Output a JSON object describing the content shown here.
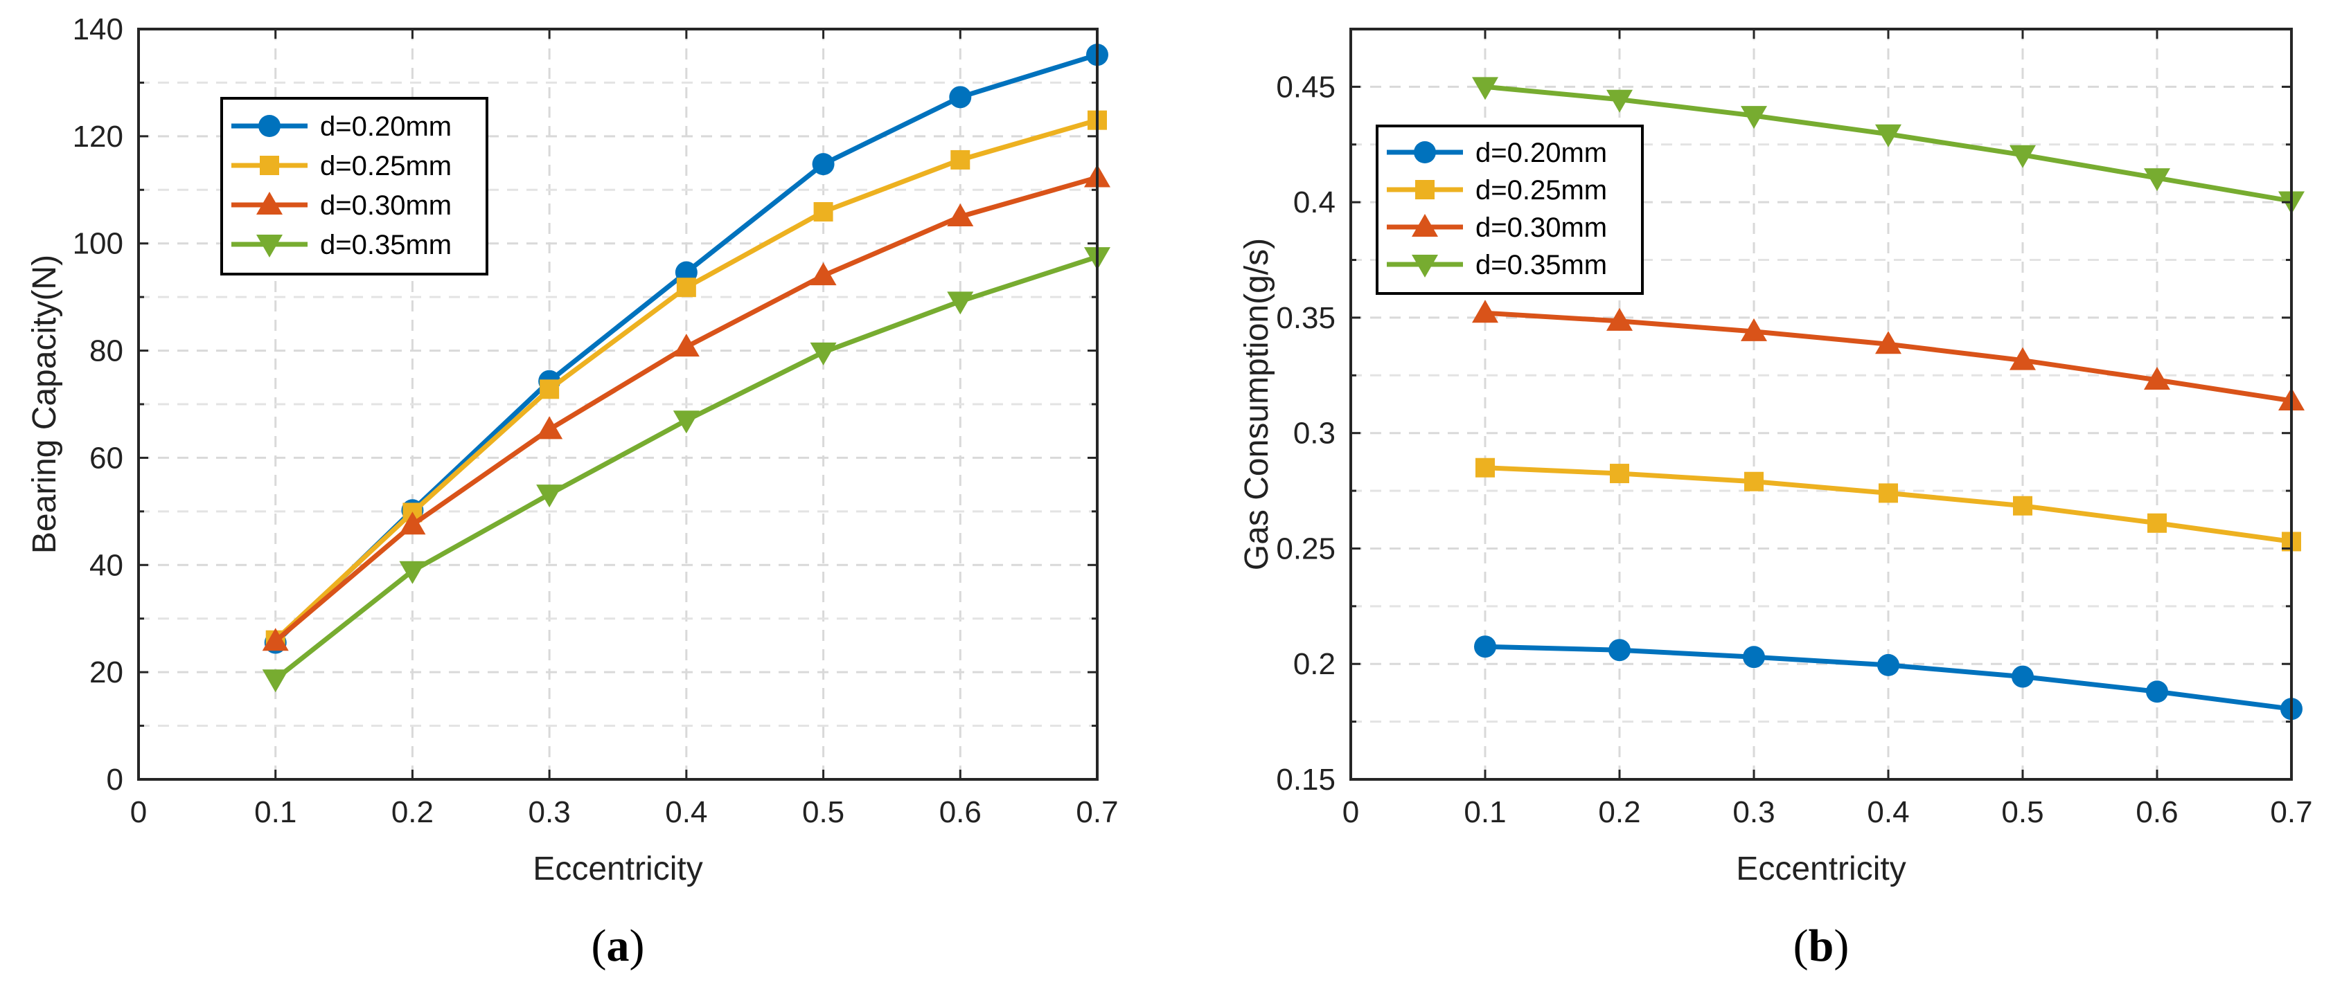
{
  "colors": {
    "d020": "#0072bd",
    "d025": "#edb120",
    "d030": "#d95319",
    "d035": "#77ac30"
  },
  "chart_data": [
    {
      "type": "line",
      "panel": "a",
      "caption": {
        "open": "(",
        "letter": "a",
        "close": ")"
      },
      "xlabel": "Eccentricity",
      "ylabel": "Bearing Capacity(N)",
      "xlim": [
        0,
        0.7
      ],
      "ylim": [
        0,
        140
      ],
      "xticks": [
        "0",
        "0.1",
        "0.2",
        "0.3",
        "0.4",
        "0.5",
        "0.6",
        "0.7"
      ],
      "yticks": [
        "0",
        "20",
        "40",
        "60",
        "80",
        "100",
        "120",
        "140"
      ],
      "grid": true,
      "legend_position": "top-left",
      "x": [
        0.1,
        0.2,
        0.3,
        0.4,
        0.5,
        0.6,
        0.7
      ],
      "series": [
        {
          "name": "d=0.20mm",
          "marker": "circle",
          "values": [
            25.5,
            50.2,
            74.3,
            94.6,
            114.8,
            127.3,
            135.2
          ]
        },
        {
          "name": "d=0.25mm",
          "marker": "square",
          "values": [
            26.0,
            49.8,
            72.8,
            91.8,
            105.9,
            115.6,
            123.0
          ]
        },
        {
          "name": "d=0.30mm",
          "marker": "triangle-up",
          "values": [
            25.8,
            47.5,
            65.3,
            80.7,
            94.0,
            105.0,
            112.3
          ]
        },
        {
          "name": "d=0.35mm",
          "marker": "triangle-down",
          "values": [
            18.7,
            38.9,
            53.2,
            67.0,
            79.7,
            89.2,
            97.5
          ]
        }
      ]
    },
    {
      "type": "line",
      "panel": "b",
      "caption": {
        "open": "(",
        "letter": "b",
        "close": ")"
      },
      "xlabel": "Eccentricity",
      "ylabel": "Gas Consumption(g/s)",
      "xlim": [
        0,
        0.7
      ],
      "ylim": [
        0.15,
        0.475
      ],
      "xticks": [
        "0",
        "0.1",
        "0.2",
        "0.3",
        "0.4",
        "0.5",
        "0.6",
        "0.7"
      ],
      "yticks": [
        "0.15",
        "0.2",
        "0.25",
        "0.3",
        "0.35",
        "0.4",
        "0.45"
      ],
      "grid": true,
      "legend_position": "top-left",
      "x": [
        0.1,
        0.2,
        0.3,
        0.4,
        0.5,
        0.6,
        0.7
      ],
      "series": [
        {
          "name": "d=0.20mm",
          "marker": "circle",
          "values": [
            0.2075,
            0.206,
            0.203,
            0.1995,
            0.1945,
            0.188,
            0.1805
          ]
        },
        {
          "name": "d=0.25mm",
          "marker": "square",
          "values": [
            0.285,
            0.2825,
            0.279,
            0.274,
            0.2685,
            0.261,
            0.253
          ]
        },
        {
          "name": "d=0.30mm",
          "marker": "triangle-up",
          "values": [
            0.352,
            0.3485,
            0.344,
            0.3385,
            0.3315,
            0.323,
            0.314
          ]
        },
        {
          "name": "d=0.35mm",
          "marker": "triangle-down",
          "values": [
            0.45,
            0.4445,
            0.4375,
            0.4295,
            0.4205,
            0.4105,
            0.4005
          ]
        }
      ]
    }
  ]
}
